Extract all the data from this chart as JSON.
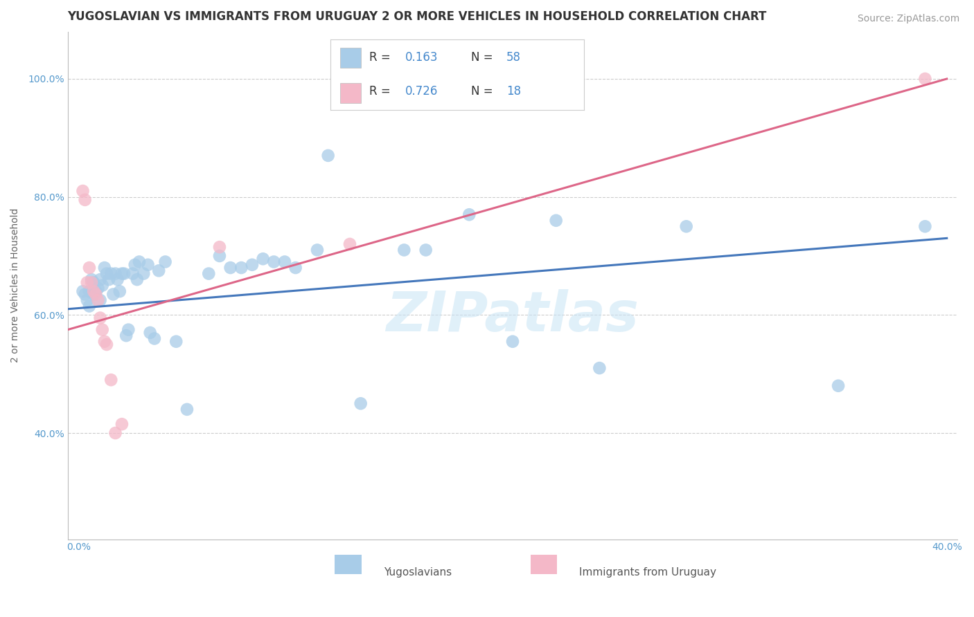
{
  "title": "YUGOSLAVIAN VS IMMIGRANTS FROM URUGUAY 2 OR MORE VEHICLES IN HOUSEHOLD CORRELATION CHART",
  "source": "Source: ZipAtlas.com",
  "ylabel": "2 or more Vehicles in Household",
  "xlabel_blue": "Yugoslavians",
  "xlabel_pink": "Immigrants from Uruguay",
  "watermark": "ZIPatlas",
  "xlim": [
    -0.005,
    0.405
  ],
  "ylim": [
    0.22,
    1.08
  ],
  "xticks": [
    0.0,
    0.1,
    0.2,
    0.3,
    0.4
  ],
  "yticks": [
    0.4,
    0.6,
    0.8,
    1.0
  ],
  "ytick_labels": [
    "40.0%",
    "60.0%",
    "80.0%",
    "100.0%"
  ],
  "xtick_labels": [
    "0.0%",
    "",
    "",
    "",
    "40.0%"
  ],
  "R_blue": 0.163,
  "N_blue": 58,
  "R_pink": 0.726,
  "N_pink": 18,
  "blue_color": "#a8cce8",
  "pink_color": "#f4b8c8",
  "line_blue": "#4477bb",
  "line_pink": "#dd6688",
  "blue_scatter": [
    [
      0.002,
      0.64
    ],
    [
      0.003,
      0.635
    ],
    [
      0.004,
      0.625
    ],
    [
      0.005,
      0.64
    ],
    [
      0.005,
      0.615
    ],
    [
      0.006,
      0.66
    ],
    [
      0.007,
      0.635
    ],
    [
      0.007,
      0.655
    ],
    [
      0.008,
      0.64
    ],
    [
      0.009,
      0.645
    ],
    [
      0.01,
      0.66
    ],
    [
      0.01,
      0.625
    ],
    [
      0.011,
      0.65
    ],
    [
      0.012,
      0.68
    ],
    [
      0.013,
      0.67
    ],
    [
      0.014,
      0.66
    ],
    [
      0.015,
      0.67
    ],
    [
      0.016,
      0.635
    ],
    [
      0.017,
      0.67
    ],
    [
      0.018,
      0.66
    ],
    [
      0.019,
      0.64
    ],
    [
      0.02,
      0.67
    ],
    [
      0.021,
      0.67
    ],
    [
      0.022,
      0.565
    ],
    [
      0.023,
      0.575
    ],
    [
      0.025,
      0.67
    ],
    [
      0.026,
      0.685
    ],
    [
      0.027,
      0.66
    ],
    [
      0.028,
      0.69
    ],
    [
      0.03,
      0.67
    ],
    [
      0.032,
      0.685
    ],
    [
      0.033,
      0.57
    ],
    [
      0.035,
      0.56
    ],
    [
      0.037,
      0.675
    ],
    [
      0.04,
      0.69
    ],
    [
      0.045,
      0.555
    ],
    [
      0.05,
      0.44
    ],
    [
      0.06,
      0.67
    ],
    [
      0.065,
      0.7
    ],
    [
      0.07,
      0.68
    ],
    [
      0.075,
      0.68
    ],
    [
      0.08,
      0.685
    ],
    [
      0.085,
      0.695
    ],
    [
      0.09,
      0.69
    ],
    [
      0.095,
      0.69
    ],
    [
      0.1,
      0.68
    ],
    [
      0.11,
      0.71
    ],
    [
      0.115,
      0.87
    ],
    [
      0.13,
      0.45
    ],
    [
      0.15,
      0.71
    ],
    [
      0.16,
      0.71
    ],
    [
      0.18,
      0.77
    ],
    [
      0.2,
      0.555
    ],
    [
      0.22,
      0.76
    ],
    [
      0.24,
      0.51
    ],
    [
      0.28,
      0.75
    ],
    [
      0.35,
      0.48
    ],
    [
      0.39,
      0.75
    ]
  ],
  "pink_scatter": [
    [
      0.002,
      0.81
    ],
    [
      0.003,
      0.795
    ],
    [
      0.004,
      0.655
    ],
    [
      0.005,
      0.68
    ],
    [
      0.006,
      0.655
    ],
    [
      0.007,
      0.64
    ],
    [
      0.008,
      0.635
    ],
    [
      0.009,
      0.625
    ],
    [
      0.01,
      0.595
    ],
    [
      0.011,
      0.575
    ],
    [
      0.012,
      0.555
    ],
    [
      0.013,
      0.55
    ],
    [
      0.015,
      0.49
    ],
    [
      0.017,
      0.4
    ],
    [
      0.02,
      0.415
    ],
    [
      0.065,
      0.715
    ],
    [
      0.125,
      0.72
    ],
    [
      0.39,
      1.0
    ]
  ],
  "title_fontsize": 12,
  "axis_label_fontsize": 10,
  "tick_fontsize": 10,
  "legend_fontsize": 13,
  "source_fontsize": 10,
  "blue_line_y0": 0.61,
  "blue_line_y1": 0.73,
  "pink_line_y0": 0.575,
  "pink_line_y1": 1.0
}
